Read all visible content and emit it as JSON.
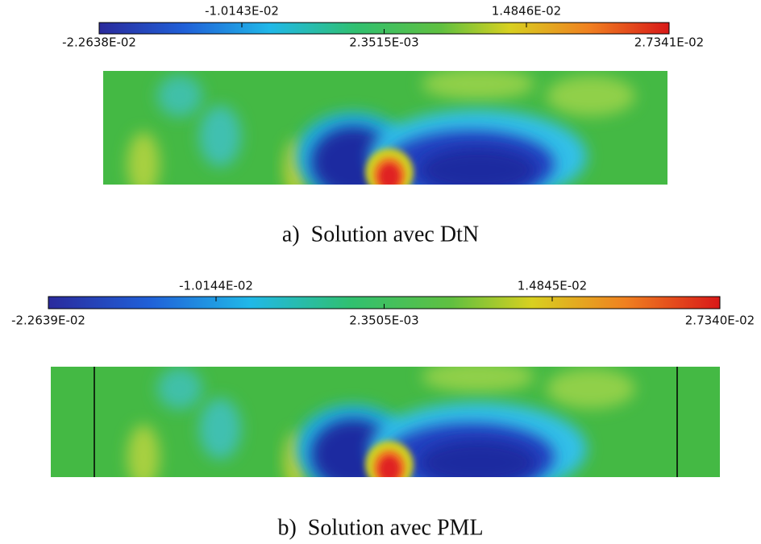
{
  "panels": [
    {
      "colorbar": {
        "upper_labels": [
          "-1.0143E-02",
          "1.4846E-02"
        ],
        "lower_labels": [
          "-2.2638E-02",
          "2.3515E-03",
          "2.7341E-02"
        ]
      },
      "caption": "a)  Solution avec DtN"
    },
    {
      "colorbar": {
        "upper_labels": [
          "-1.0144E-02",
          "1.4845E-02"
        ],
        "lower_labels": [
          "-2.2639E-02",
          "2.3505E-03",
          "2.7340E-02"
        ]
      },
      "caption": "b)  Solution avec PML"
    }
  ]
}
